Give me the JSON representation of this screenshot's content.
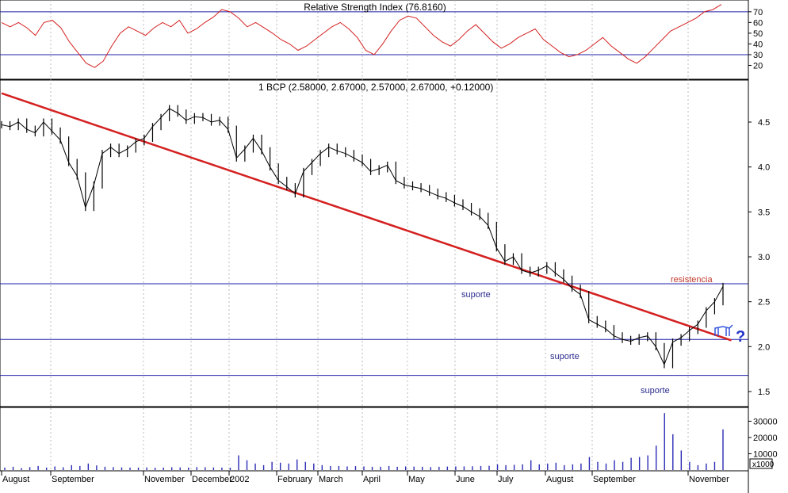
{
  "chart_data": [
    {
      "type": "line",
      "title": "Relative Strength Index (76.8160)",
      "ylim": [
        10,
        78
      ],
      "y_ticks": [
        "70",
        "60",
        "50",
        "40",
        "30",
        "20"
      ],
      "y_tick_values": [
        70,
        60,
        50,
        40,
        30,
        20
      ],
      "reference_lines": [
        70,
        30
      ],
      "series": [
        {
          "color": "#d42020",
          "values": [
            60,
            56,
            60,
            55,
            48,
            60,
            62,
            55,
            42,
            32,
            22,
            18,
            24,
            38,
            50,
            56,
            52,
            48,
            55,
            60,
            56,
            62,
            50,
            54,
            60,
            65,
            72,
            70,
            64,
            56,
            60,
            55,
            50,
            44,
            40,
            34,
            38,
            44,
            50,
            56,
            60,
            54,
            46,
            34,
            30,
            40,
            52,
            62,
            66,
            64,
            56,
            48,
            42,
            38,
            44,
            52,
            58,
            50,
            42,
            36,
            40,
            46,
            50,
            54,
            44,
            38,
            32,
            28,
            30,
            34,
            40,
            46,
            38,
            32,
            26,
            22,
            28,
            36,
            44,
            52,
            56,
            60,
            64,
            70,
            72,
            76.8
          ]
        }
      ]
    },
    {
      "type": "line",
      "title": "1 BCP (2.58000, 2.67000, 2.57000, 2.67000, +0.12000)",
      "ylim": [
        1.35,
        4.95
      ],
      "y_ticks": [
        "4.5",
        "4.0",
        "3.5",
        "3.0",
        "2.5",
        "2.0",
        "1.5"
      ],
      "y_tick_values": [
        4.5,
        4.0,
        3.5,
        3.0,
        2.5,
        2.0,
        1.5
      ],
      "series": [
        {
          "color": "#000000",
          "values": [
            4.47,
            4.45,
            4.5,
            4.42,
            4.38,
            4.5,
            4.4,
            4.3,
            4.05,
            3.9,
            3.55,
            3.8,
            4.15,
            4.22,
            4.15,
            4.2,
            4.28,
            4.32,
            4.45,
            4.55,
            4.65,
            4.6,
            4.52,
            4.56,
            4.55,
            4.5,
            4.52,
            4.42,
            4.1,
            4.2,
            4.32,
            4.18,
            4.0,
            3.85,
            3.78,
            3.7,
            3.95,
            4.05,
            4.15,
            4.22,
            4.18,
            4.15,
            4.1,
            4.05,
            3.95,
            3.98,
            4.02,
            3.85,
            3.8,
            3.78,
            3.76,
            3.72,
            3.68,
            3.65,
            3.6,
            3.56,
            3.5,
            3.45,
            3.35,
            3.1,
            2.95,
            3.0,
            2.85,
            2.82,
            2.85,
            2.9,
            2.82,
            2.75,
            2.65,
            2.58,
            2.3,
            2.25,
            2.2,
            2.12,
            2.08,
            2.06,
            2.1,
            2.12,
            2.0,
            1.8,
            2.05,
            2.1,
            2.18,
            2.25,
            2.4,
            2.5,
            2.67
          ]
        }
      ],
      "trendlines": [
        {
          "color": "#d42020",
          "from": [
            0,
            4.82
          ],
          "to": [
            87,
            2.07
          ]
        }
      ],
      "support_lines": [
        2.7,
        2.08,
        1.68
      ],
      "annotations": {
        "suporte_1": "suporte",
        "suporte_2": "suporte",
        "suporte_3": "suporte",
        "resistencia": "resistencia",
        "question_mark": "?"
      }
    },
    {
      "type": "bar",
      "ylim": [
        0,
        38000
      ],
      "y_ticks": [
        "30000",
        "20000",
        "10000"
      ],
      "y_tick_values": [
        30000,
        20000,
        10000
      ],
      "unit": "x1000",
      "series": [
        {
          "color": "#2b2bb5",
          "values": [
            1500,
            2000,
            1200,
            1800,
            2500,
            1500,
            2200,
            1700,
            3000,
            2500,
            4000,
            2800,
            2000,
            1800,
            1600,
            1500,
            1500,
            1600,
            1400,
            1500,
            1700,
            1600,
            1500,
            1800,
            1700,
            1600,
            1500,
            1400,
            9000,
            6000,
            4000,
            3000,
            5000,
            4500,
            4000,
            6500,
            5000,
            4000,
            3000,
            2500,
            2500,
            2200,
            2400,
            2200,
            2000,
            2000,
            2500,
            2000,
            2200,
            2100,
            2000,
            1800,
            2000,
            2100,
            2200,
            2200,
            2300,
            2500,
            2600,
            3500,
            3000,
            3200,
            3500,
            6000,
            3500,
            4000,
            4500,
            3000,
            3500,
            4000,
            8000,
            5000,
            4000,
            6000,
            5000,
            7500,
            8000,
            9000,
            15000,
            35000,
            22000,
            12000,
            5000,
            3000,
            4000,
            5000,
            25000
          ]
        }
      ]
    }
  ],
  "x_axis": {
    "months": [
      "August",
      "September",
      "November",
      "December",
      "2002",
      "February",
      "March",
      "April",
      "May",
      "June",
      "July",
      "August",
      "September",
      "November"
    ]
  }
}
